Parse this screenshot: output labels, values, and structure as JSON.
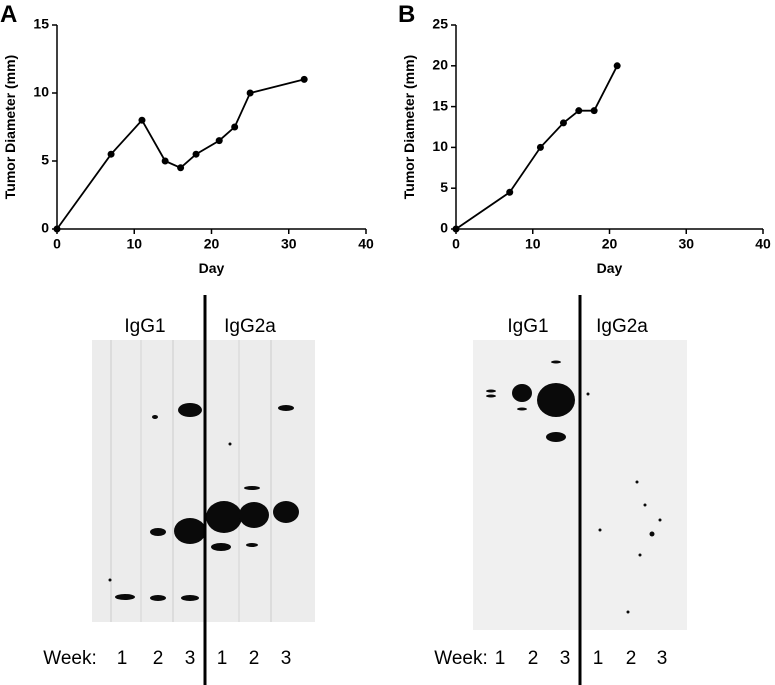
{
  "chart_data": [
    {
      "type": "line",
      "xlabel": "Day",
      "ylabel": "Tumor Diameter (mm)",
      "x": [
        0,
        7,
        11,
        14,
        16,
        18,
        21,
        23,
        25,
        32
      ],
      "values": [
        0,
        5.5,
        8,
        5,
        4.5,
        5.5,
        6.5,
        7.5,
        10,
        11
      ],
      "color": "#000000",
      "xlim": [
        0,
        40
      ],
      "xticks": [
        0,
        10,
        20,
        30,
        40
      ],
      "ylim": [
        0,
        15
      ],
      "yticks": [
        0,
        5,
        10,
        15
      ]
    },
    {
      "type": "line",
      "xlabel": "Day",
      "ylabel": "Tumor Diameter (mm)",
      "x": [
        0,
        7,
        11,
        14,
        16,
        18,
        21
      ],
      "values": [
        0,
        4.5,
        10,
        13,
        14.5,
        14.5,
        20
      ],
      "color": "#000000",
      "xlim": [
        0,
        40
      ],
      "xticks": [
        0,
        10,
        20,
        30,
        40
      ],
      "ylim": [
        0,
        25
      ],
      "yticks": [
        0,
        5,
        10,
        15,
        20,
        25
      ]
    }
  ],
  "panels": [
    {
      "letter": "A",
      "blot": {
        "lanes": [
          "IgG1",
          "IgG2a"
        ],
        "week_label": "Week:",
        "weeks": [
          "1",
          "2",
          "3",
          "1",
          "2",
          "3"
        ]
      }
    },
    {
      "letter": "B",
      "blot": {
        "lanes": [
          "IgG1",
          "IgG2a"
        ],
        "week_label": "Week:",
        "weeks": [
          "1",
          "2",
          "3",
          "1",
          "2",
          "3"
        ]
      }
    }
  ]
}
